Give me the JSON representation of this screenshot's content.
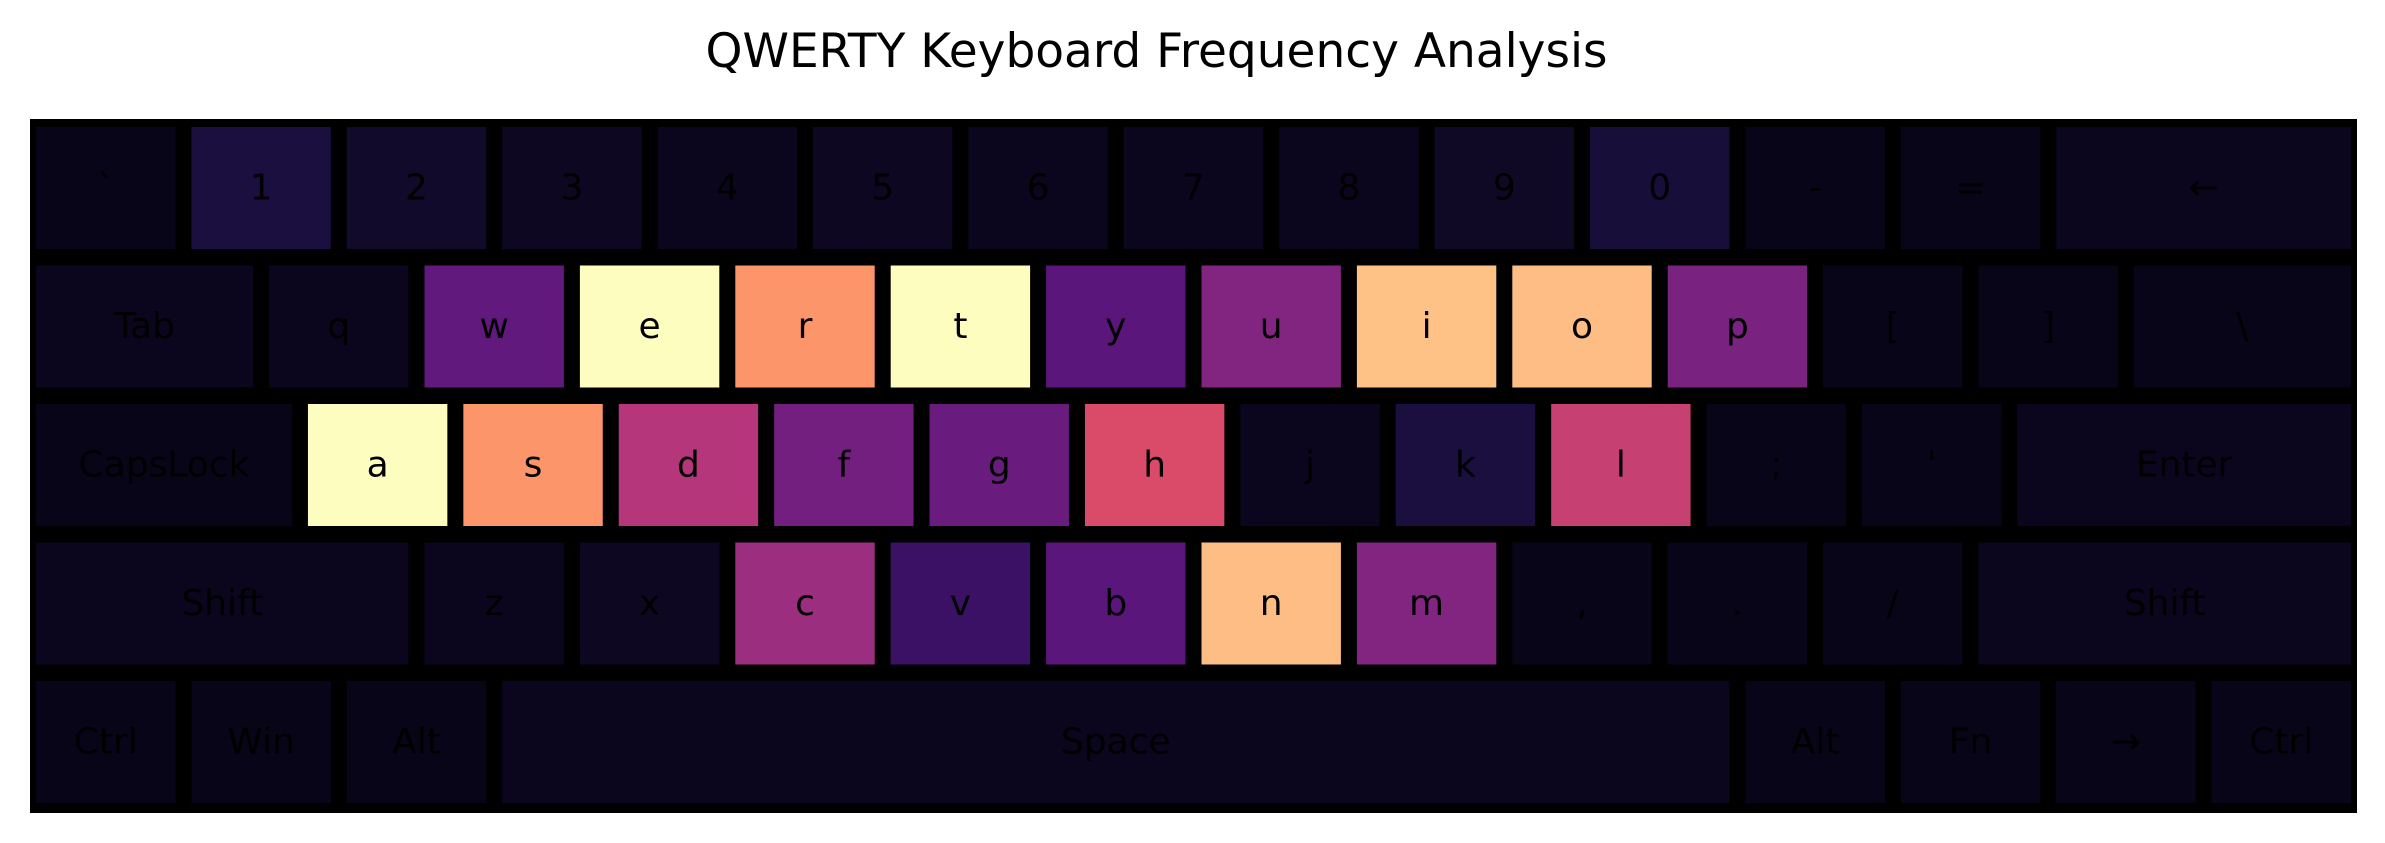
{
  "title": "QWERTY Keyboard Frequency Analysis",
  "chart_data": {
    "type": "heatmap",
    "title": "QWERTY Keyboard Frequency Analysis",
    "colormap": "magma",
    "rows": [
      [
        {
          "label": "`",
          "value": 0.04
        },
        {
          "label": "1",
          "value": 0.12
        },
        {
          "label": "2",
          "value": 0.08
        },
        {
          "label": "3",
          "value": 0.06
        },
        {
          "label": "4",
          "value": 0.05
        },
        {
          "label": "5",
          "value": 0.06
        },
        {
          "label": "6",
          "value": 0.05
        },
        {
          "label": "7",
          "value": 0.05
        },
        {
          "label": "8",
          "value": 0.05
        },
        {
          "label": "9",
          "value": 0.07
        },
        {
          "label": "0",
          "value": 0.11
        },
        {
          "label": "-",
          "value": 0.04
        },
        {
          "label": "=",
          "value": 0.04
        },
        {
          "label": "←",
          "value": 0.05
        }
      ],
      [
        {
          "label": "Tab",
          "value": 0.05
        },
        {
          "label": "q",
          "value": 0.05
        },
        {
          "label": "w",
          "value": 0.3
        },
        {
          "label": "e",
          "value": 1.0
        },
        {
          "label": "r",
          "value": 0.78
        },
        {
          "label": "t",
          "value": 1.0
        },
        {
          "label": "y",
          "value": 0.28
        },
        {
          "label": "u",
          "value": 0.38
        },
        {
          "label": "i",
          "value": 0.88
        },
        {
          "label": "o",
          "value": 0.87
        },
        {
          "label": "p",
          "value": 0.36
        },
        {
          "label": "[",
          "value": 0.04
        },
        {
          "label": "]",
          "value": 0.04
        },
        {
          "label": "\\",
          "value": 0.04
        }
      ],
      [
        {
          "label": "CapsLock",
          "value": 0.04
        },
        {
          "label": "a",
          "value": 1.0
        },
        {
          "label": "s",
          "value": 0.78
        },
        {
          "label": "d",
          "value": 0.5
        },
        {
          "label": "f",
          "value": 0.34
        },
        {
          "label": "g",
          "value": 0.32
        },
        {
          "label": "h",
          "value": 0.6
        },
        {
          "label": "j",
          "value": 0.05
        },
        {
          "label": "k",
          "value": 0.12
        },
        {
          "label": "l",
          "value": 0.55
        },
        {
          "label": ";",
          "value": 0.04
        },
        {
          "label": "'",
          "value": 0.04
        },
        {
          "label": "Enter",
          "value": 0.05
        }
      ],
      [
        {
          "label": "Shift",
          "value": 0.05
        },
        {
          "label": "z",
          "value": 0.05
        },
        {
          "label": "x",
          "value": 0.06
        },
        {
          "label": "c",
          "value": 0.44
        },
        {
          "label": "v",
          "value": 0.2
        },
        {
          "label": "b",
          "value": 0.28
        },
        {
          "label": "n",
          "value": 0.87
        },
        {
          "label": "m",
          "value": 0.38
        },
        {
          "label": ",",
          "value": 0.04
        },
        {
          "label": ".",
          "value": 0.04
        },
        {
          "label": "/",
          "value": 0.04
        },
        {
          "label": "Shift",
          "value": 0.05
        }
      ],
      [
        {
          "label": "Ctrl",
          "value": 0.04
        },
        {
          "label": "Win",
          "value": 0.04
        },
        {
          "label": "Alt",
          "value": 0.04
        },
        {
          "label": "Space",
          "value": 0.05
        },
        {
          "label": "Alt",
          "value": 0.04
        },
        {
          "label": "Fn",
          "value": 0.04
        },
        {
          "label": "→",
          "value": 0.04
        },
        {
          "label": "Ctrl",
          "value": 0.04
        }
      ]
    ]
  }
}
